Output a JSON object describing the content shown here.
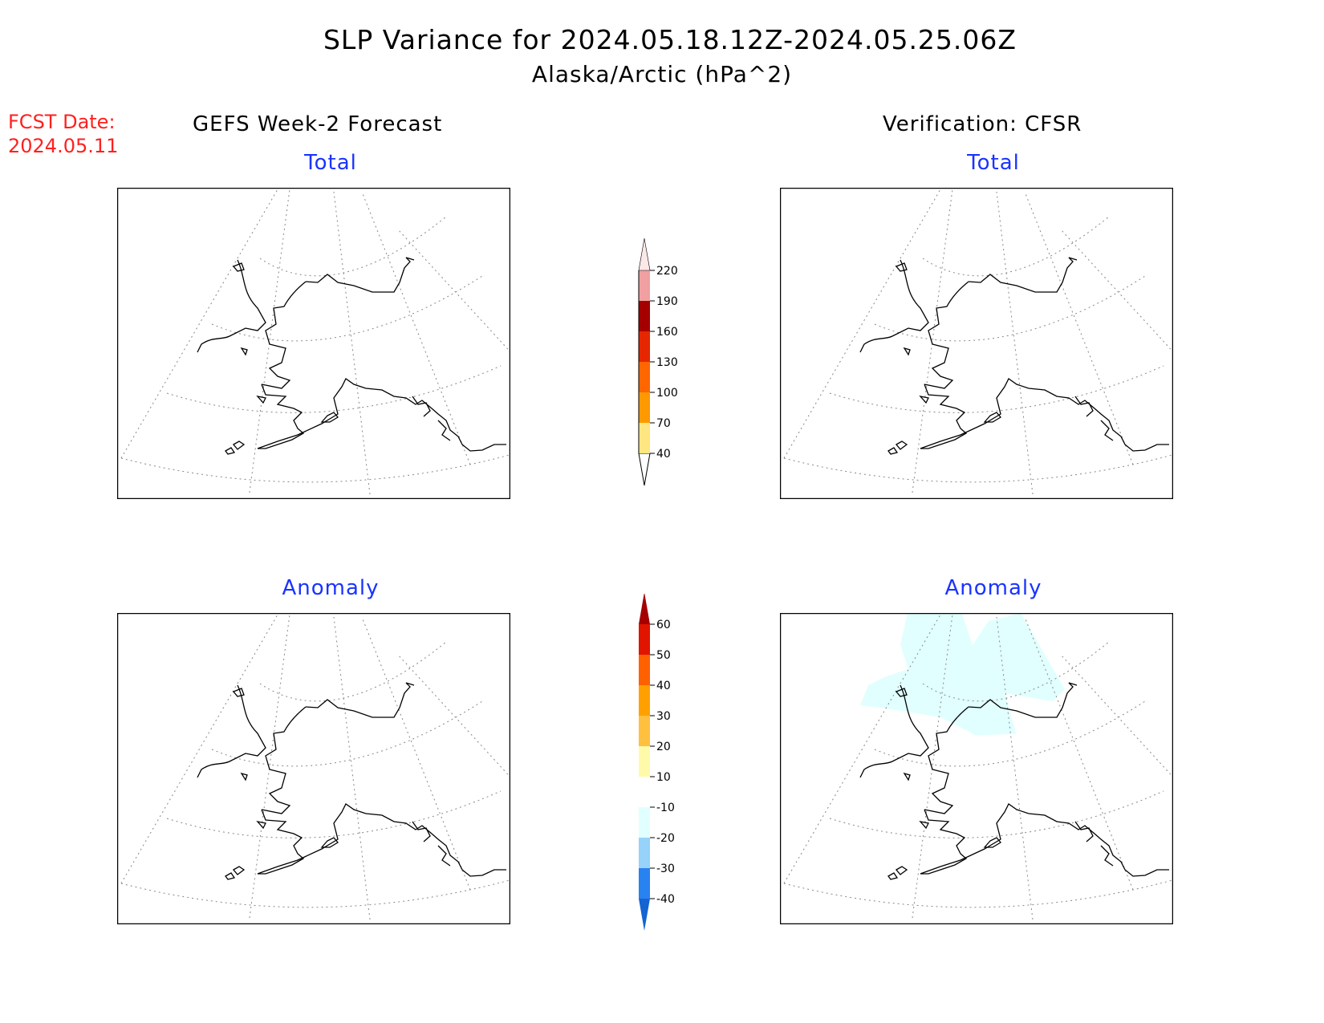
{
  "title": {
    "line1": "SLP Variance for 2024.05.18.12Z-2024.05.25.06Z",
    "line2": "Alaska/Arctic (hPa^2)"
  },
  "forecast_date": {
    "label": "FCST Date:",
    "value": "2024.05.11"
  },
  "columns": {
    "left": "GEFS Week-2 Forecast",
    "right": "Verification: CFSR"
  },
  "panels": {
    "top_left_title": "Total",
    "top_right_title": "Total",
    "bottom_left_title": "Anomaly",
    "bottom_right_title": "Anomaly"
  },
  "colorbar_total": {
    "labels": [
      "40",
      "70",
      "100",
      "130",
      "160",
      "190",
      "220"
    ],
    "colors": [
      "#ffe680",
      "#ff9900",
      "#ff6600",
      "#e62600",
      "#a50000",
      "#f0a0a0",
      "#fde8e8"
    ]
  },
  "colorbar_anomaly": {
    "labels": [
      "-40",
      "-30",
      "-20",
      "-10",
      "10",
      "20",
      "30",
      "40",
      "50",
      "60"
    ],
    "colors": [
      "#1464d2",
      "#2882f0",
      "#96d2fa",
      "#e1ffff",
      "#ffffff",
      "#fffaaa",
      "#ffc040",
      "#ffa000",
      "#ff6000",
      "#e11400",
      "#a50000"
    ]
  },
  "colors": {
    "title_text": "#000000",
    "panel_title": "#1a33ff",
    "fcst_text": "#ff2020"
  }
}
